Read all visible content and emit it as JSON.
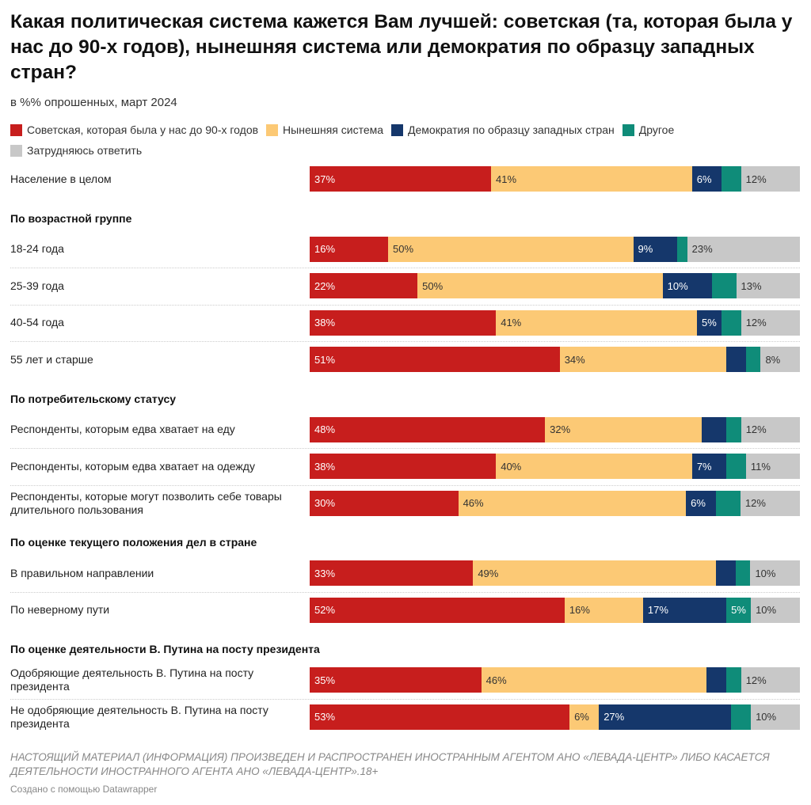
{
  "chart_data": {
    "type": "bar",
    "orientation": "horizontal-stacked-100",
    "title": "Какая политическая система кажется Вам лучшей: советская (та, которая была у нас до 90-х годов), нынешняя система или демократия по образцу западных стран?",
    "subtitle": "в %% опрошенных, март 2024",
    "series": [
      {
        "name": "Советская, которая была у нас до 90-х годов",
        "color": "#c71e1d",
        "text": "#fff"
      },
      {
        "name": "Нынешняя система",
        "color": "#fcc975",
        "text": "#333"
      },
      {
        "name": "Демократия по образцу западных стран",
        "color": "#15376b",
        "text": "#fff"
      },
      {
        "name": "Другое",
        "color": "#0f8c79",
        "text": "#fff"
      },
      {
        "name": "Затрудняюсь ответить",
        "color": "#c8c8c8",
        "text": "#333"
      }
    ],
    "groups": [
      {
        "title": null,
        "rows": [
          {
            "label": "Население в целом",
            "values": [
              37,
              41,
              6,
              4,
              12
            ],
            "labeled": [
              true,
              true,
              true,
              false,
              true
            ]
          }
        ]
      },
      {
        "title": "По возрастной группе",
        "rows": [
          {
            "label": "18-24 года",
            "values": [
              16,
              50,
              9,
              2,
              23
            ],
            "labeled": [
              true,
              true,
              true,
              false,
              true
            ]
          },
          {
            "label": "25-39 года",
            "values": [
              22,
              50,
              10,
              5,
              13
            ],
            "labeled": [
              true,
              true,
              true,
              false,
              true
            ]
          },
          {
            "label": "40-54 года",
            "values": [
              38,
              41,
              5,
              4,
              12
            ],
            "labeled": [
              true,
              true,
              true,
              false,
              true
            ]
          },
          {
            "label": "55 лет и старше",
            "values": [
              51,
              34,
              4,
              3,
              8
            ],
            "labeled": [
              true,
              true,
              false,
              false,
              true
            ]
          }
        ]
      },
      {
        "title": "По потребительскому статусу",
        "rows": [
          {
            "label": "Респонденты, которым едва хватает на еду",
            "values": [
              48,
              32,
              5,
              3,
              12
            ],
            "labeled": [
              true,
              true,
              false,
              false,
              true
            ]
          },
          {
            "label": "Респонденты, которым едва хватает на одежду",
            "values": [
              38,
              40,
              7,
              4,
              11
            ],
            "labeled": [
              true,
              true,
              true,
              false,
              true
            ]
          },
          {
            "label": "Респонденты, которые могут позволить себе товары длительного пользования",
            "values": [
              30,
              46,
              6,
              5,
              12
            ],
            "labeled": [
              true,
              true,
              true,
              false,
              true
            ]
          }
        ]
      },
      {
        "title": "По оценке текущего положения дел в стране",
        "rows": [
          {
            "label": "В правильном направлении",
            "values": [
              33,
              49,
              4,
              3,
              10
            ],
            "labeled": [
              true,
              true,
              false,
              false,
              true
            ]
          },
          {
            "label": "По неверному пути",
            "values": [
              52,
              16,
              17,
              5,
              10
            ],
            "labeled": [
              true,
              true,
              true,
              true,
              true
            ]
          }
        ]
      },
      {
        "title": "По оценке деятельности В. Путина на посту президента",
        "rows": [
          {
            "label": "Одобряющие деятельность В. Путина на посту президента",
            "values": [
              35,
              46,
              4,
              3,
              12
            ],
            "labeled": [
              true,
              true,
              false,
              false,
              true
            ]
          },
          {
            "label": "Не одобряющие деятельность В. Путина на посту президента",
            "values": [
              53,
              6,
              27,
              4,
              10
            ],
            "labeled": [
              true,
              true,
              true,
              false,
              true
            ]
          }
        ]
      }
    ],
    "xlim": [
      0,
      100
    ]
  },
  "footer": {
    "note": "НАСТОЯЩИЙ МАТЕРИАЛ (ИНФОРМАЦИЯ) ПРОИЗВЕДЕН И РАСПРОСТРАНЕН ИНОСТРАННЫМ АГЕНТОМ АНО «ЛЕВАДА-ЦЕНТР» ЛИБО КАСАЕТСЯ ДЕЯТЕЛЬНОСТИ ИНОСТРАННОГО АГЕНТА АНО «ЛЕВАДА-ЦЕНТР».18+",
    "credit": "Создано с помощью Datawrapper"
  }
}
